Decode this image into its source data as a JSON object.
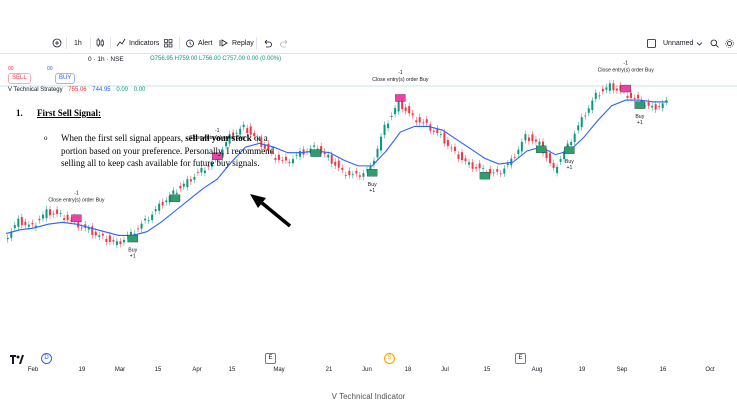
{
  "toolbar": {
    "interval": "1h",
    "indicators": "Indicators",
    "alert": "Alert",
    "replay": "Replay",
    "layout_name": "Unnamed"
  },
  "symbol": {
    "title": "0 · 1h · NSE",
    "ohlc": "O756.95 H759.00 L756.00 C757.00 0.00 (0.00%)",
    "sell_price": "00",
    "sell_label": "SELL",
    "buy_price": "00",
    "buy_label": "BUY"
  },
  "strategy": {
    "name": "V Technical Strategy",
    "v1": "755.06",
    "v2": "744.95",
    "v3": "0.00",
    "v4": "0.00"
  },
  "slide": {
    "number": "1.",
    "heading": "First Sell Signal:",
    "bullet": "o",
    "text_1": "When the first sell signal appears, ",
    "bold_1": "sell all your stock",
    "text_2": " or a portion based on your preference. Personally, I recommend selling all to keep cash available for future buy signals."
  },
  "signals": {
    "close_label": "Close entry(s) order Buy",
    "minus_one": "-1",
    "buy": "Buy",
    "plus_one": "+1"
  },
  "xaxis": [
    "Feb",
    "19",
    "Mar",
    "15",
    "Apr",
    "15",
    "May",
    "21",
    "Jun",
    "18",
    "Jul",
    "15",
    "Aug",
    "19",
    "Sep",
    "16",
    "Oct"
  ],
  "events": {
    "d": "D",
    "e": "E",
    "s": "S"
  },
  "colors": {
    "up": "#089981",
    "down": "#f23645",
    "ma": "#2962ff",
    "signal_box": "#f23fa8",
    "buy_box": "#2f9e6e"
  },
  "caption": "V Technical Indicator",
  "chart_data": {
    "type": "line",
    "series": [
      {
        "name": "",
        "values": [
          735,
          745,
          742,
          750,
          748,
          744,
          740,
          736,
          733,
          738,
          745,
          753,
          760,
          766,
          772,
          777,
          790,
          795,
          788,
          780,
          776,
          781,
          784,
          779,
          771,
          769,
          773,
          795,
          808,
          800,
          796,
          790,
          781,
          775,
          772,
          770,
          777,
          790,
          786,
          772,
          785,
          799,
          812,
          817,
          813,
          809,
          805,
          808
        ]
      },
      {
        "name": "",
        "values": [
          738,
          740,
          741,
          743,
          744,
          743,
          741,
          739,
          737,
          737,
          739,
          744,
          750,
          756,
          762,
          767,
          776,
          784,
          786,
          784,
          781,
          781,
          782,
          781,
          777,
          774,
          774,
          782,
          792,
          795,
          795,
          793,
          788,
          783,
          778,
          775,
          776,
          782,
          784,
          780,
          782,
          789,
          798,
          806,
          809,
          809,
          808,
          808
        ]
      }
    ]
  }
}
